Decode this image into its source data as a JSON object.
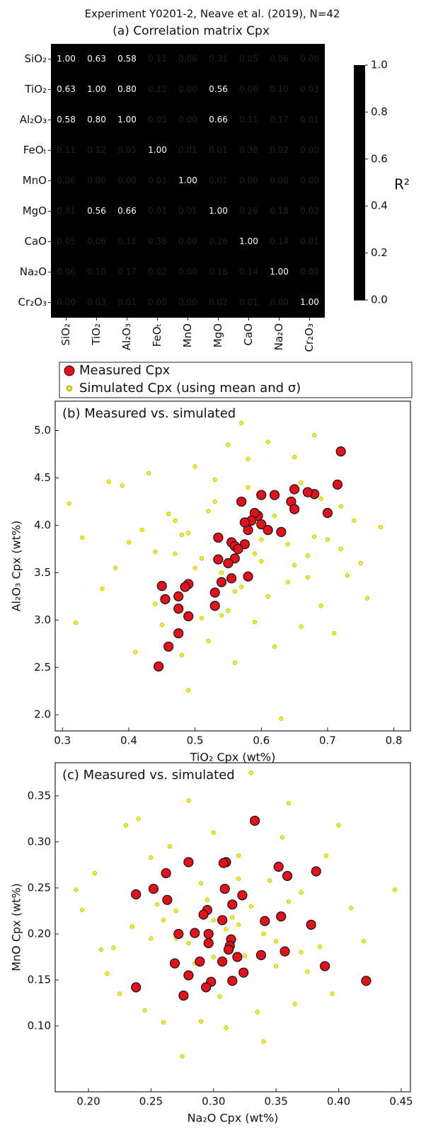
{
  "header": {
    "title": "Experiment Y0201-2, Neave et al. (2019), N=42"
  },
  "chart_data": [
    {
      "type": "heatmap",
      "title": "(a) Correlation matrix Cpx",
      "categories": [
        "SiO₂",
        "TiO₂",
        "Al₂O₃",
        "FeOₜ",
        "MnO",
        "MgO",
        "CaO",
        "Na₂O",
        "Cr₂O₃"
      ],
      "values": [
        [
          1.0,
          0.63,
          0.58,
          0.11,
          0.06,
          0.31,
          0.05,
          0.06,
          0.0
        ],
        [
          0.63,
          1.0,
          0.8,
          0.12,
          0.0,
          0.56,
          0.06,
          0.1,
          0.03
        ],
        [
          0.58,
          0.8,
          1.0,
          0.05,
          0.0,
          0.66,
          0.11,
          0.17,
          0.01
        ],
        [
          0.11,
          0.12,
          0.05,
          1.0,
          0.01,
          0.01,
          0.38,
          0.02,
          0.0
        ],
        [
          0.06,
          0.0,
          0.0,
          0.01,
          1.0,
          0.01,
          0.0,
          0.0,
          0.0
        ],
        [
          0.31,
          0.56,
          0.66,
          0.01,
          0.01,
          1.0,
          0.26,
          0.18,
          0.02
        ],
        [
          0.05,
          0.06,
          0.11,
          0.38,
          0.0,
          0.26,
          1.0,
          0.14,
          0.01
        ],
        [
          0.06,
          0.1,
          0.17,
          0.02,
          0.0,
          0.18,
          0.14,
          1.0,
          0.0
        ],
        [
          0.0,
          0.03,
          0.01,
          0.0,
          0.0,
          0.02,
          0.01,
          0.0,
          1.0
        ]
      ],
      "value_labels": [
        [
          "1.00",
          "0.63",
          "0.58",
          "0.11",
          "0.06",
          "0.31",
          "0.05",
          "0.06",
          "0.00"
        ],
        [
          "0.63",
          "1.00",
          "0.80",
          "0.12",
          "0.00",
          "0.56",
          "0.06",
          "0.10",
          "0.03"
        ],
        [
          "0.58",
          "0.80",
          "1.00",
          "0.05",
          "0.00",
          "0.66",
          "0.11",
          "0.17",
          "0.01"
        ],
        [
          "0.11",
          "0.12",
          "0.05",
          "1.00",
          "0.01",
          "0.01",
          "0.38",
          "0.02",
          "0.00"
        ],
        [
          "0.06",
          "0.00",
          "0.00",
          "0.01",
          "1.00",
          "0.01",
          "0.00",
          "0.00",
          "0.00"
        ],
        [
          "0.31",
          "0.56",
          "0.66",
          "0.01",
          "0.01",
          "1.00",
          "0.26",
          "0.18",
          "0.02"
        ],
        [
          "0.05",
          "0.06",
          "0.11",
          "0.38",
          "0.00",
          "0.26",
          "1.00",
          "0.14",
          "0.01"
        ],
        [
          "0.06",
          "0.10",
          "0.17",
          "0.02",
          "0.00",
          "0.18",
          "0.14",
          "1.00",
          "0.00"
        ],
        [
          "0.00",
          "0.03",
          "0.01",
          "0.00",
          "0.00",
          "0.02",
          "0.01",
          "0.00",
          "1.00"
        ]
      ],
      "colormap": "rocket_r",
      "colorbar_label": "R²",
      "clim": [
        0,
        1
      ],
      "cticks": [
        {
          "value": 0,
          "label": "0.0"
        },
        {
          "value": 0.2,
          "label": "0.2"
        },
        {
          "value": 0.4,
          "label": "0.4"
        },
        {
          "value": 0.6,
          "label": "0.6"
        },
        {
          "value": 0.8,
          "label": "0.8"
        },
        {
          "value": 1,
          "label": "1.0"
        }
      ]
    },
    {
      "type": "scatter",
      "title": "(b) Measured vs. simulated",
      "x_label": "TiO₂ Cpx (wt%)",
      "y_label": "Al₂O₃ Cpx (wt%)",
      "xlim": [
        0.289,
        0.825
      ],
      "ylim": [
        1.83,
        5.31
      ],
      "xticks": [
        0.3,
        0.4,
        0.5,
        0.6,
        0.7,
        0.8
      ],
      "yticks": [
        {
          "value": 2,
          "label": "2.0"
        },
        {
          "value": 2.5,
          "label": "2.5"
        },
        {
          "value": 3,
          "label": "3.0"
        },
        3.5,
        {
          "value": 4,
          "label": "4.0"
        },
        4.5,
        {
          "value": 5,
          "label": "5.0"
        }
      ],
      "legend": "top-outside",
      "series": [
        {
          "name": "Measured Cpx",
          "color": "#e3111b",
          "x": [
            0.72,
            0.715,
            0.7,
            0.68,
            0.67,
            0.65,
            0.645,
            0.65,
            0.63,
            0.6,
            0.62,
            0.595,
            0.6,
            0.59,
            0.585,
            0.58,
            0.575,
            0.57,
            0.575,
            0.555,
            0.56,
            0.56,
            0.565,
            0.55,
            0.535,
            0.535,
            0.54,
            0.555,
            0.58,
            0.53,
            0.53,
            0.49,
            0.485,
            0.45,
            0.455,
            0.475,
            0.475,
            0.49,
            0.475,
            0.46,
            0.445,
            0.61
          ],
          "values": [
            4.78,
            4.43,
            4.13,
            4.33,
            4.35,
            4.38,
            4.25,
            4.17,
            3.93,
            4.32,
            4.32,
            4.1,
            4.01,
            4.13,
            4.05,
            3.95,
            3.8,
            4.25,
            4.03,
            3.82,
            3.78,
            3.65,
            3.75,
            3.6,
            3.87,
            3.64,
            3.4,
            3.44,
            3.46,
            3.29,
            3.15,
            3.38,
            3.35,
            3.36,
            3.22,
            3.25,
            3.12,
            3.04,
            2.86,
            2.72,
            2.51,
            3.95
          ]
        },
        {
          "name": "Simulated Cpx (using mean and σ)",
          "color": "#f2f20a",
          "x": [
            0.31,
            0.32,
            0.33,
            0.36,
            0.37,
            0.38,
            0.39,
            0.4,
            0.41,
            0.42,
            0.43,
            0.44,
            0.45,
            0.46,
            0.47,
            0.48,
            0.49,
            0.5,
            0.51,
            0.52,
            0.53,
            0.54,
            0.55,
            0.56,
            0.57,
            0.58,
            0.59,
            0.6,
            0.61,
            0.62,
            0.63,
            0.64,
            0.65,
            0.66,
            0.67,
            0.68,
            0.69,
            0.7,
            0.71,
            0.72,
            0.73,
            0.74,
            0.75,
            0.76,
            0.78,
            0.49,
            0.52,
            0.55,
            0.58,
            0.61,
            0.64,
            0.67,
            0.44,
            0.47,
            0.5,
            0.53,
            0.56,
            0.59,
            0.62,
            0.65,
            0.68,
            0.57,
            0.6,
            0.63,
            0.54,
            0.51,
            0.48,
            0.66,
            0.69,
            0.72
          ],
          "values": [
            4.23,
            2.97,
            3.87,
            3.33,
            4.46,
            3.55,
            4.42,
            3.82,
            2.66,
            3.95,
            4.55,
            3.17,
            2.95,
            4.12,
            3.7,
            2.63,
            2.26,
            4.62,
            3.02,
            2.78,
            4.48,
            3.05,
            4.85,
            2.55,
            3.35,
            4.7,
            2.98,
            3.62,
            4.88,
            2.72,
            1.96,
            3.4,
            4.72,
            2.93,
            3.68,
            4.95,
            3.15,
            3.85,
            2.86,
            4.2,
            3.47,
            4.05,
            3.6,
            3.23,
            3.98,
            3.92,
            4.15,
            3.1,
            4.4,
            3.25,
            3.8,
            3.45,
            3.72,
            4.05,
            3.55,
            4.25,
            3.3,
            3.7,
            4.1,
            3.58,
            3.88,
            5.08,
            3.85,
            3.95,
            3.5,
            3.65,
            3.9,
            4.45,
            4.28,
            3.75
          ]
        }
      ]
    },
    {
      "type": "scatter",
      "title": "(c) Measured vs. simulated",
      "x_label": "Na₂O Cpx (wt%)",
      "y_label": "MnO Cpx (wt%)",
      "xlim": [
        0.1734,
        0.4574
      ],
      "ylim": [
        0.0285,
        0.386
      ],
      "xticks": [
        {
          "value": 0.2,
          "label": "0.20"
        },
        0.25,
        {
          "value": 0.3,
          "label": "0.30"
        },
        0.35,
        {
          "value": 0.4,
          "label": "0.40"
        },
        0.45
      ],
      "yticks": [
        {
          "value": 0.1,
          "label": "0.10"
        },
        0.15,
        {
          "value": 0.2,
          "label": "0.20"
        },
        0.25,
        {
          "value": 0.3,
          "label": "0.30"
        },
        0.35
      ],
      "series": [
        {
          "color": "#e3111b",
          "x": [
            0.333,
            0.31,
            0.308,
            0.28,
            0.262,
            0.252,
            0.238,
            0.263,
            0.352,
            0.359,
            0.382,
            0.309,
            0.295,
            0.292,
            0.315,
            0.323,
            0.354,
            0.341,
            0.378,
            0.307,
            0.285,
            0.272,
            0.296,
            0.296,
            0.314,
            0.313,
            0.312,
            0.357,
            0.338,
            0.319,
            0.289,
            0.307,
            0.269,
            0.389,
            0.28,
            0.324,
            0.298,
            0.315,
            0.294,
            0.238,
            0.276,
            0.422
          ],
          "values": [
            0.323,
            0.278,
            0.277,
            0.278,
            0.266,
            0.249,
            0.243,
            0.237,
            0.273,
            0.263,
            0.268,
            0.249,
            0.226,
            0.221,
            0.232,
            0.242,
            0.219,
            0.214,
            0.21,
            0.215,
            0.201,
            0.2,
            0.2,
            0.19,
            0.194,
            0.187,
            0.183,
            0.181,
            0.177,
            0.175,
            0.17,
            0.17,
            0.168,
            0.165,
            0.155,
            0.158,
            0.148,
            0.149,
            0.142,
            0.142,
            0.133,
            0.149
          ]
        },
        {
          "color": "#f2f20a",
          "x": [
            0.19,
            0.195,
            0.205,
            0.21,
            0.215,
            0.22,
            0.225,
            0.23,
            0.235,
            0.24,
            0.245,
            0.25,
            0.255,
            0.26,
            0.265,
            0.27,
            0.275,
            0.28,
            0.285,
            0.29,
            0.295,
            0.3,
            0.305,
            0.31,
            0.315,
            0.32,
            0.325,
            0.33,
            0.335,
            0.34,
            0.345,
            0.35,
            0.355,
            0.36,
            0.365,
            0.37,
            0.375,
            0.38,
            0.385,
            0.39,
            0.395,
            0.4,
            0.41,
            0.42,
            0.445,
            0.27,
            0.29,
            0.31,
            0.33,
            0.35,
            0.28,
            0.3,
            0.32,
            0.34,
            0.26,
            0.36,
            0.3,
            0.32,
            0.25,
            0.37
          ],
          "values": [
            0.248,
            0.226,
            0.266,
            0.183,
            0.157,
            0.185,
            0.135,
            0.318,
            0.208,
            0.325,
            0.117,
            0.283,
            0.232,
            0.104,
            0.295,
            0.195,
            0.067,
            0.345,
            0.168,
            0.105,
            0.237,
            0.31,
            0.132,
            0.098,
            0.218,
            0.285,
            0.176,
            0.375,
            0.115,
            0.083,
            0.258,
            0.192,
            0.305,
            0.342,
            0.124,
            0.245,
            0.159,
            0.212,
            0.186,
            0.285,
            0.135,
            0.318,
            0.228,
            0.192,
            0.248,
            0.225,
            0.255,
            0.205,
            0.23,
            0.165,
            0.19,
            0.215,
            0.26,
            0.2,
            0.215,
            0.235,
            0.175,
            0.21,
            0.195,
            0.18
          ]
        }
      ]
    }
  ]
}
